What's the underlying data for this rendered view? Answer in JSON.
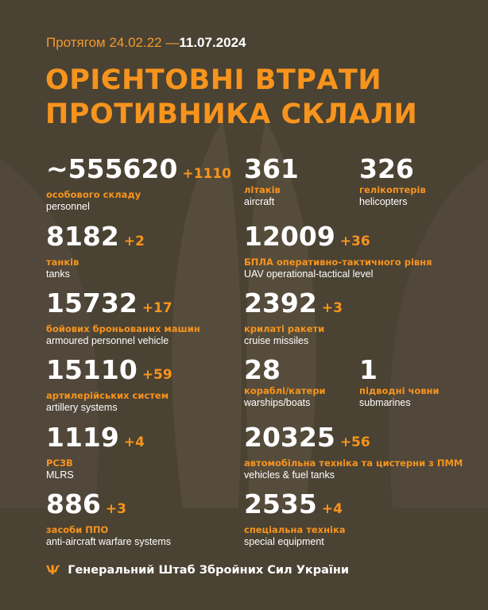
{
  "header": {
    "period_prefix": "Протягом 24.02.22 —",
    "period_end": "11.07.2024",
    "title_line1": "ОРІЄНТОВНІ ВТРАТИ",
    "title_line2": "ПРОТИВНИКА СКЛАЛИ"
  },
  "stats": [
    {
      "value": "~555620",
      "inc": "+1110",
      "ua": "особового складу",
      "en": "personnel"
    },
    {
      "value": "361",
      "inc": "",
      "ua": "літаків",
      "en": "aircraft"
    },
    {
      "value": "326",
      "inc": "",
      "ua": "гелікоптерів",
      "en": "helicopters"
    },
    {
      "value": "8182",
      "inc": "+2",
      "ua": "танків",
      "en": "tanks"
    },
    {
      "value": "12009",
      "inc": "+36",
      "ua": "БПЛА оперативно-тактичного рівня",
      "en": "UAV operational-tactical level"
    },
    {
      "value": "15732",
      "inc": "+17",
      "ua": "бойових броньованих машин",
      "en": "armoured personnel vehicle"
    },
    {
      "value": "2392",
      "inc": "+3",
      "ua": "крилаті ракети",
      "en": "cruise missiles"
    },
    {
      "value": "15110",
      "inc": "+59",
      "ua": "артилерійських систем",
      "en": "artillery systems"
    },
    {
      "value": "28",
      "inc": "",
      "ua": "кораблі/катери",
      "en": "warships/boats"
    },
    {
      "value": "1",
      "inc": "",
      "ua": "підводні човни",
      "en": "submarines"
    },
    {
      "value": "1119",
      "inc": "+4",
      "ua": "РСЗВ",
      "en": "MLRS"
    },
    {
      "value": "20325",
      "inc": "+56",
      "ua": "автомобільна техніка та цистерни з ПММ",
      "en": "vehicles & fuel tanks"
    },
    {
      "value": "886",
      "inc": "+3",
      "ua": "засоби ППО",
      "en": "anti-aircraft warfare systems"
    },
    {
      "value": "2535",
      "inc": "+4",
      "ua": "спеціальна техніка",
      "en": "special equipment"
    }
  ],
  "footer": {
    "text": "Генеральний Штаб Збройних Сил України",
    "icon": "trident-icon"
  },
  "colors": {
    "background": "#4a4233",
    "accent": "#f7941d",
    "text": "#ffffff"
  }
}
